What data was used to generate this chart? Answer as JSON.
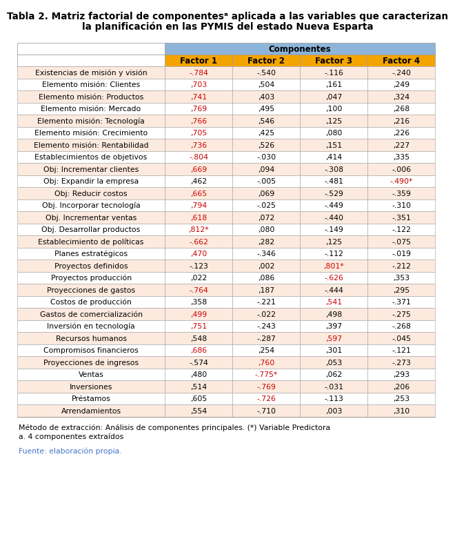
{
  "title_line1": "Tabla 2. Matriz factorial de componentesᵃ aplicada a las variables que caracterizan",
  "title_line2": "la planificación en las PYMIS del estado Nueva Esparta",
  "header_group": "Componentes",
  "col_headers": [
    "Factor 1",
    "Factor 2",
    "Factor 3",
    "Factor 4"
  ],
  "rows": [
    {
      "label": "Existencias de misión y visión",
      "vals": [
        "-.784",
        "-.540",
        "-.116",
        "-.240"
      ],
      "red": [
        true,
        false,
        false,
        false
      ]
    },
    {
      "label": "Elemento misión: Clientes",
      "vals": [
        ",703",
        ",504",
        ",161",
        ",249"
      ],
      "red": [
        true,
        false,
        false,
        false
      ]
    },
    {
      "label": "Elemento misión: Productos",
      "vals": [
        ",741",
        ",403",
        ",047",
        ",324"
      ],
      "red": [
        true,
        false,
        false,
        false
      ]
    },
    {
      "label": "Elemento misión: Mercado",
      "vals": [
        ",769",
        ",495",
        ",100",
        ",268"
      ],
      "red": [
        true,
        false,
        false,
        false
      ]
    },
    {
      "label": "Elemento misión: Tecnología",
      "vals": [
        ",766",
        ",546",
        ",125",
        ",216"
      ],
      "red": [
        true,
        false,
        false,
        false
      ]
    },
    {
      "label": "Elemento misión: Crecimiento",
      "vals": [
        ",705",
        ",425",
        ",080",
        ",226"
      ],
      "red": [
        true,
        false,
        false,
        false
      ]
    },
    {
      "label": "Elemento misión: Rentabilidad",
      "vals": [
        ",736",
        ",526",
        ",151",
        ",227"
      ],
      "red": [
        true,
        false,
        false,
        false
      ]
    },
    {
      "label": "Establecimientos de objetivos",
      "vals": [
        "-.804",
        "-.030",
        ",414",
        ",335"
      ],
      "red": [
        true,
        false,
        false,
        false
      ]
    },
    {
      "label": "Obj: Incrementar clientes",
      "vals": [
        ",669",
        ",094",
        "-.308",
        "-.006"
      ],
      "red": [
        true,
        false,
        false,
        false
      ]
    },
    {
      "label": "Obj: Expandir la empresa",
      "vals": [
        ",462",
        "-.005",
        "-.481",
        "-.490*"
      ],
      "red": [
        false,
        false,
        false,
        true
      ]
    },
    {
      "label": "Obj: Reducir costos",
      "vals": [
        ",665",
        ",069",
        "-.529",
        "-.359"
      ],
      "red": [
        true,
        false,
        false,
        false
      ]
    },
    {
      "label": "Obj. Incorporar tecnología",
      "vals": [
        ",794",
        "-.025",
        "-.449",
        "-.310"
      ],
      "red": [
        true,
        false,
        false,
        false
      ]
    },
    {
      "label": "Obj. Incrementar ventas",
      "vals": [
        ",618",
        ",072",
        "-.440",
        "-.351"
      ],
      "red": [
        true,
        false,
        false,
        false
      ]
    },
    {
      "label": "Obj. Desarrollar productos",
      "vals": [
        ",812*",
        ",080",
        "-.149",
        "-.122"
      ],
      "red": [
        true,
        false,
        false,
        false
      ]
    },
    {
      "label": "Establecimiento de políticas",
      "vals": [
        "-.662",
        ",282",
        ",125",
        "-.075"
      ],
      "red": [
        true,
        false,
        false,
        false
      ]
    },
    {
      "label": "Planes estratégicos",
      "vals": [
        ",470",
        "-.346",
        "-.112",
        "-.019"
      ],
      "red": [
        true,
        false,
        false,
        false
      ]
    },
    {
      "label": "Proyectos definidos",
      "vals": [
        "-.123",
        ",002",
        ",801*",
        "-.212"
      ],
      "red": [
        false,
        false,
        true,
        false
      ]
    },
    {
      "label": "Proyectos producción",
      "vals": [
        ",022",
        ",086",
        "-.626",
        ",353"
      ],
      "red": [
        false,
        false,
        true,
        false
      ]
    },
    {
      "label": "Proyecciones de gastos",
      "vals": [
        "-.764",
        ",187",
        "-.444",
        ",295"
      ],
      "red": [
        true,
        false,
        false,
        false
      ]
    },
    {
      "label": "Costos de producción",
      "vals": [
        ",358",
        "-.221",
        ",541",
        "-.371"
      ],
      "red": [
        false,
        false,
        true,
        false
      ]
    },
    {
      "label": "Gastos de comercialización",
      "vals": [
        ",499",
        "-.022",
        ",498",
        "-.275"
      ],
      "red": [
        true,
        false,
        false,
        false
      ]
    },
    {
      "label": "Inversión en tecnología",
      "vals": [
        ",751",
        "-.243",
        ",397",
        "-.268"
      ],
      "red": [
        true,
        false,
        false,
        false
      ]
    },
    {
      "label": "Recursos humanos",
      "vals": [
        ",548",
        "-.287",
        ",597",
        "-.045"
      ],
      "red": [
        false,
        false,
        true,
        false
      ]
    },
    {
      "label": "Compromisos financieros",
      "vals": [
        ",686",
        ",254",
        ",301",
        "-.121"
      ],
      "red": [
        true,
        false,
        false,
        false
      ]
    },
    {
      "label": "Proyecciones de ingresos",
      "vals": [
        "-.574",
        ",760",
        ",053",
        "-.273"
      ],
      "red": [
        false,
        true,
        false,
        false
      ]
    },
    {
      "label": "Ventas",
      "vals": [
        ",480",
        "-.775*",
        ",062",
        ",293"
      ],
      "red": [
        false,
        true,
        false,
        false
      ]
    },
    {
      "label": "Inversiones",
      "vals": [
        ",514",
        "-.769",
        "-.031",
        ",206"
      ],
      "red": [
        false,
        true,
        false,
        false
      ]
    },
    {
      "label": "Préstamos",
      "vals": [
        ",605",
        "-.726",
        "-.113",
        ",253"
      ],
      "red": [
        false,
        true,
        false,
        false
      ]
    },
    {
      "label": "Arrendamientos",
      "vals": [
        ",554",
        "-.710",
        ",003",
        ",310"
      ],
      "red": [
        false,
        false,
        false,
        false
      ]
    }
  ],
  "footnote1": "Método de extracción: Análisis de componentes principales. (*) Variable Predictora",
  "footnote2": "a. 4 componentes extraídos",
  "footnote3": "Fuente: elaboración propia.",
  "bg_color": "#FFFFFF",
  "header_group_bg": "#8DB4D9",
  "header_col_bg": "#F4A400",
  "row_bg_odd": "#FDEADE",
  "row_bg_even": "#FFFFFF",
  "border_color": "#A0A0A0",
  "text_red": "#CC0000",
  "text_black": "#000000",
  "text_blue": "#4472C4",
  "title_fontsize": 9.8,
  "header_fontsize": 8.5,
  "data_fontsize": 7.8,
  "footnote_fontsize": 7.8
}
